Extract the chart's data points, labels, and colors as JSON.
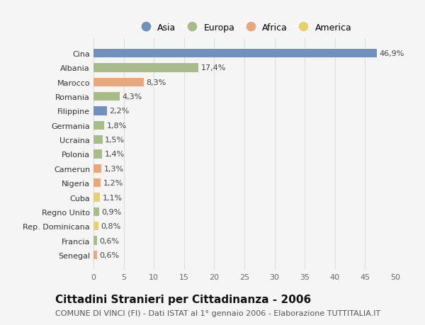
{
  "categories": [
    "Cina",
    "Albania",
    "Marocco",
    "Romania",
    "Filippine",
    "Germania",
    "Ucraina",
    "Polonia",
    "Camerun",
    "Nigeria",
    "Cuba",
    "Regno Unito",
    "Rep. Dominicana",
    "Francia",
    "Senegal"
  ],
  "values": [
    46.9,
    17.4,
    8.3,
    4.3,
    2.2,
    1.8,
    1.5,
    1.4,
    1.3,
    1.2,
    1.1,
    0.9,
    0.8,
    0.6,
    0.6
  ],
  "labels": [
    "46,9%",
    "17,4%",
    "8,3%",
    "4,3%",
    "2,2%",
    "1,8%",
    "1,5%",
    "1,4%",
    "1,3%",
    "1,2%",
    "1,1%",
    "0,9%",
    "0,8%",
    "0,6%",
    "0,6%"
  ],
  "continents": [
    "Asia",
    "Europa",
    "Africa",
    "Europa",
    "Asia",
    "Europa",
    "Europa",
    "Europa",
    "Africa",
    "Africa",
    "America",
    "Europa",
    "America",
    "Europa",
    "Africa"
  ],
  "continent_colors": {
    "Asia": "#7090be",
    "Europa": "#a8bc8a",
    "Africa": "#e8a87c",
    "America": "#e8d070"
  },
  "legend_entries": [
    "Asia",
    "Europa",
    "Africa",
    "America"
  ],
  "legend_colors": [
    "#7090be",
    "#a8bc8a",
    "#e8a87c",
    "#e8d070"
  ],
  "title": "Cittadini Stranieri per Cittadinanza - 2006",
  "subtitle": "COMUNE DI VINCI (FI) - Dati ISTAT al 1° gennaio 2006 - Elaborazione TUTTITALIA.IT",
  "xlim": [
    0,
    50
  ],
  "xticks": [
    0,
    5,
    10,
    15,
    20,
    25,
    30,
    35,
    40,
    45,
    50
  ],
  "background_color": "#f5f5f5",
  "grid_color": "#dddddd",
  "bar_height": 0.6,
  "title_fontsize": 11,
  "subtitle_fontsize": 8,
  "label_fontsize": 8,
  "tick_fontsize": 8,
  "legend_fontsize": 9
}
